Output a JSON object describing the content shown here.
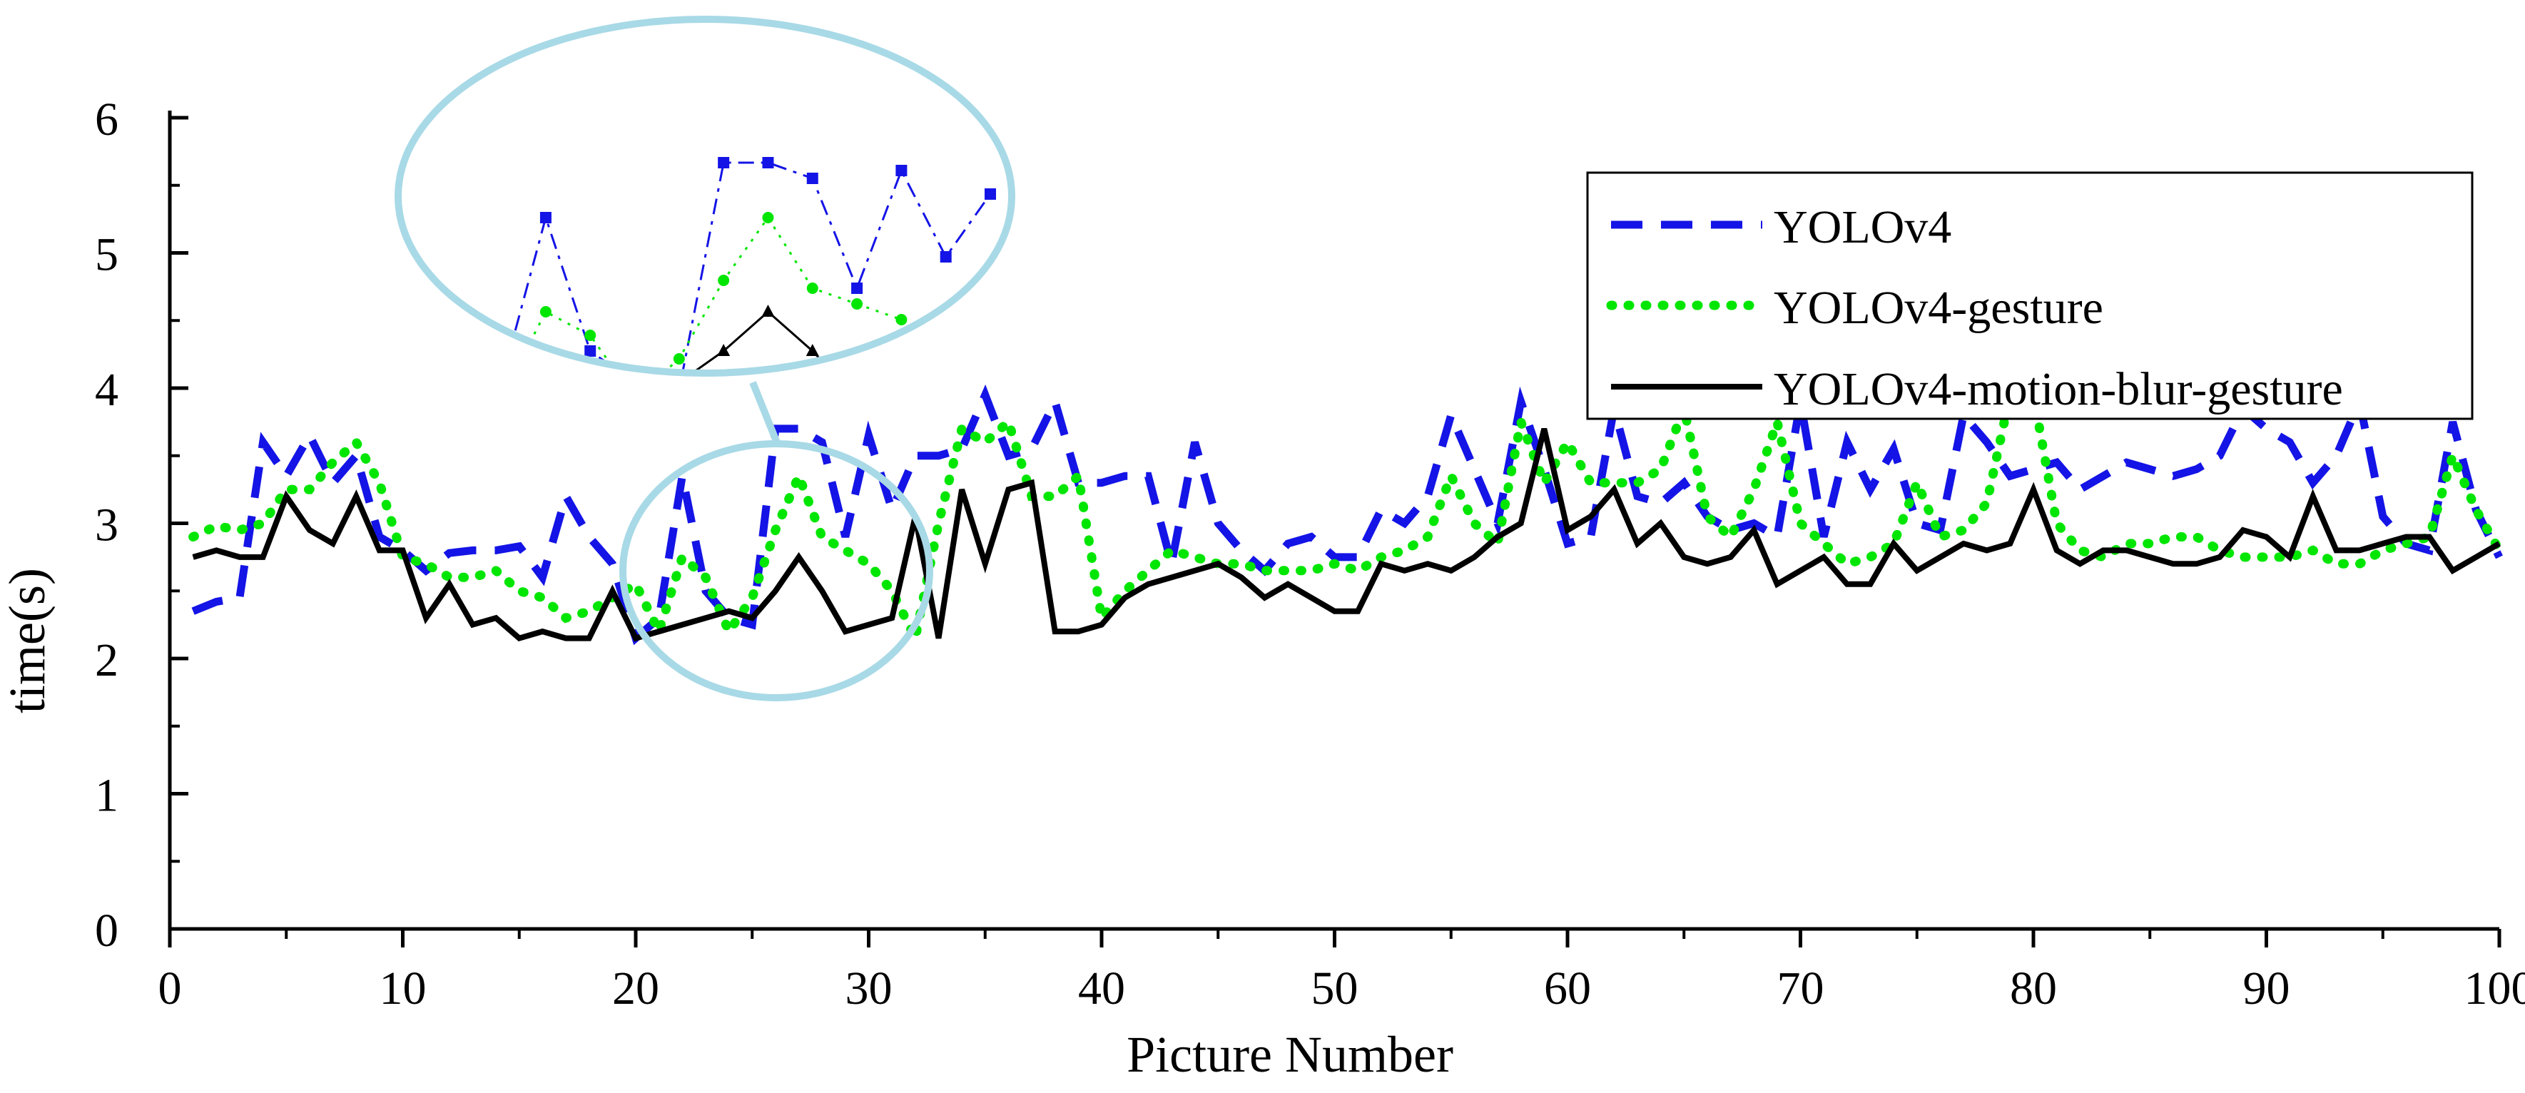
{
  "chart_data": {
    "type": "line",
    "title": "",
    "xlabel": "Picture Number",
    "ylabel": "time(s)",
    "xlim": [
      0,
      100
    ],
    "ylim": [
      0,
      6
    ],
    "xticks": [
      0,
      10,
      20,
      30,
      40,
      50,
      60,
      70,
      80,
      90,
      100
    ],
    "yticks": [
      0,
      1,
      2,
      3,
      4,
      5,
      6
    ],
    "grid": false,
    "legend_position": "top-right",
    "x": [
      1,
      2,
      3,
      4,
      5,
      6,
      7,
      8,
      9,
      10,
      11,
      12,
      13,
      14,
      15,
      16,
      17,
      18,
      19,
      20,
      21,
      22,
      23,
      24,
      25,
      26,
      27,
      28,
      29,
      30,
      31,
      32,
      33,
      34,
      35,
      36,
      37,
      38,
      39,
      40,
      41,
      42,
      43,
      44,
      45,
      46,
      47,
      48,
      49,
      50,
      51,
      52,
      53,
      54,
      55,
      56,
      57,
      58,
      59,
      60,
      61,
      62,
      63,
      64,
      65,
      66,
      67,
      68,
      69,
      70,
      71,
      72,
      73,
      74,
      75,
      76,
      77,
      78,
      79,
      80,
      81,
      82,
      83,
      84,
      85,
      86,
      87,
      88,
      89,
      90,
      91,
      92,
      93,
      94,
      95,
      96,
      97,
      98,
      99,
      100
    ],
    "series": [
      {
        "name": "YOLOv4",
        "color": "#1414e6",
        "style": "dashed",
        "values": [
          2.35,
          2.42,
          2.45,
          3.6,
          3.35,
          3.65,
          3.3,
          3.5,
          2.9,
          2.8,
          2.65,
          2.78,
          2.8,
          2.8,
          2.83,
          2.6,
          3.2,
          2.9,
          2.7,
          2.15,
          2.3,
          3.35,
          2.5,
          2.3,
          2.25,
          3.7,
          3.7,
          3.6,
          2.9,
          3.65,
          3.1,
          3.5,
          3.5,
          3.55,
          3.95,
          3.5,
          3.55,
          3.9,
          3.3,
          3.3,
          3.35,
          3.35,
          2.7,
          3.6,
          3.0,
          2.8,
          2.65,
          2.85,
          2.9,
          2.75,
          2.75,
          3.1,
          3.0,
          3.2,
          3.8,
          3.4,
          3.0,
          3.9,
          3.4,
          2.85,
          2.9,
          3.85,
          3.2,
          3.15,
          3.3,
          3.05,
          2.95,
          3.0,
          2.9,
          3.9,
          2.9,
          3.6,
          3.25,
          3.55,
          3.0,
          2.95,
          3.8,
          3.6,
          3.35,
          3.4,
          3.45,
          3.25,
          3.35,
          3.45,
          3.4,
          3.35,
          3.4,
          3.5,
          3.85,
          3.7,
          3.6,
          3.3,
          3.5,
          3.9,
          3.05,
          2.85,
          2.8,
          3.75,
          3.1,
          2.75
        ]
      },
      {
        "name": "YOLOv4-gesture",
        "color": "#00e600",
        "style": "dotted",
        "values": [
          2.9,
          2.98,
          2.95,
          3.0,
          3.25,
          3.25,
          3.45,
          3.6,
          3.3,
          2.75,
          2.7,
          2.6,
          2.6,
          2.65,
          2.5,
          2.45,
          2.3,
          2.35,
          2.45,
          2.55,
          2.2,
          2.75,
          2.6,
          2.2,
          2.45,
          2.95,
          3.35,
          2.9,
          2.8,
          2.7,
          2.5,
          2.15,
          3.0,
          3.7,
          3.6,
          3.75,
          3.2,
          3.2,
          3.35,
          2.3,
          2.5,
          2.65,
          2.8,
          2.75,
          2.7,
          2.7,
          2.65,
          2.65,
          2.65,
          2.7,
          2.65,
          2.75,
          2.8,
          2.9,
          3.35,
          3.0,
          2.85,
          3.75,
          3.3,
          3.6,
          3.3,
          3.3,
          3.3,
          3.4,
          3.85,
          3.05,
          2.9,
          3.25,
          3.75,
          3.0,
          2.85,
          2.7,
          2.75,
          2.85,
          3.3,
          2.9,
          2.95,
          3.15,
          3.95,
          3.95,
          3.0,
          2.8,
          2.75,
          2.85,
          2.85,
          2.9,
          2.9,
          2.8,
          2.75,
          2.75,
          2.75,
          2.8,
          2.7,
          2.7,
          2.8,
          2.85,
          2.9,
          3.5,
          3.1,
          2.8
        ]
      },
      {
        "name": "YOLOv4-motion-blur-gesture",
        "color": "#000000",
        "style": "solid",
        "values": [
          2.75,
          2.8,
          2.75,
          2.75,
          3.2,
          2.95,
          2.85,
          3.2,
          2.8,
          2.8,
          2.3,
          2.55,
          2.25,
          2.3,
          2.15,
          2.2,
          2.15,
          2.15,
          2.5,
          2.15,
          2.2,
          2.25,
          2.3,
          2.35,
          2.3,
          2.5,
          2.75,
          2.5,
          2.2,
          2.25,
          2.3,
          3.05,
          2.15,
          3.25,
          2.7,
          3.25,
          3.3,
          2.2,
          2.2,
          2.25,
          2.45,
          2.55,
          2.6,
          2.65,
          2.7,
          2.6,
          2.45,
          2.55,
          2.45,
          2.35,
          2.35,
          2.7,
          2.65,
          2.7,
          2.65,
          2.75,
          2.9,
          3.0,
          3.7,
          2.95,
          3.05,
          3.25,
          2.85,
          3.0,
          2.75,
          2.7,
          2.75,
          2.95,
          2.55,
          2.65,
          2.75,
          2.55,
          2.55,
          2.85,
          2.65,
          2.75,
          2.85,
          2.8,
          2.85,
          3.25,
          2.8,
          2.7,
          2.8,
          2.8,
          2.75,
          2.7,
          2.7,
          2.75,
          2.95,
          2.9,
          2.75,
          3.2,
          2.8,
          2.8,
          2.85,
          2.9,
          2.9,
          2.65,
          2.75,
          2.85
        ]
      }
    ],
    "annotation": "magnified inset of picture numbers 20-32",
    "inset_range": [
      19,
      32
    ]
  }
}
